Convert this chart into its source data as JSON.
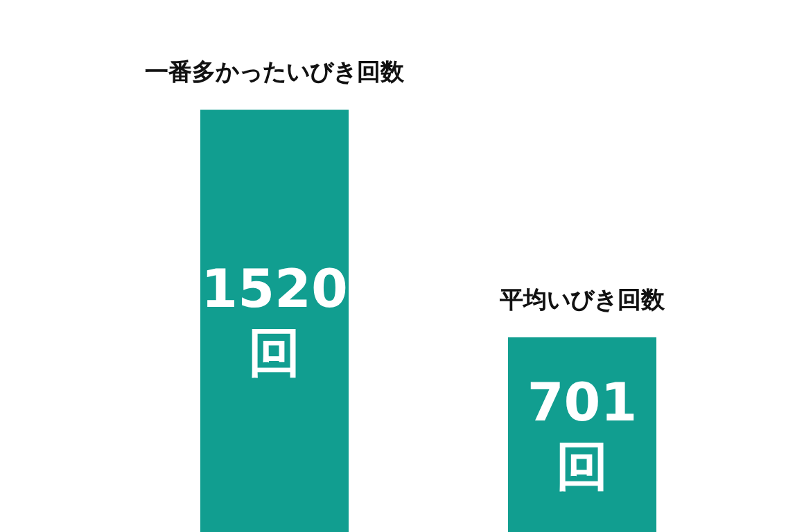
{
  "chart_data": {
    "type": "bar",
    "categories": [
      "一番多かったいびき回数",
      "平均いびき回数"
    ],
    "values": [
      1520,
      701
    ],
    "color": "#119e90",
    "value_labels": [
      "1520回",
      "701回"
    ]
  }
}
